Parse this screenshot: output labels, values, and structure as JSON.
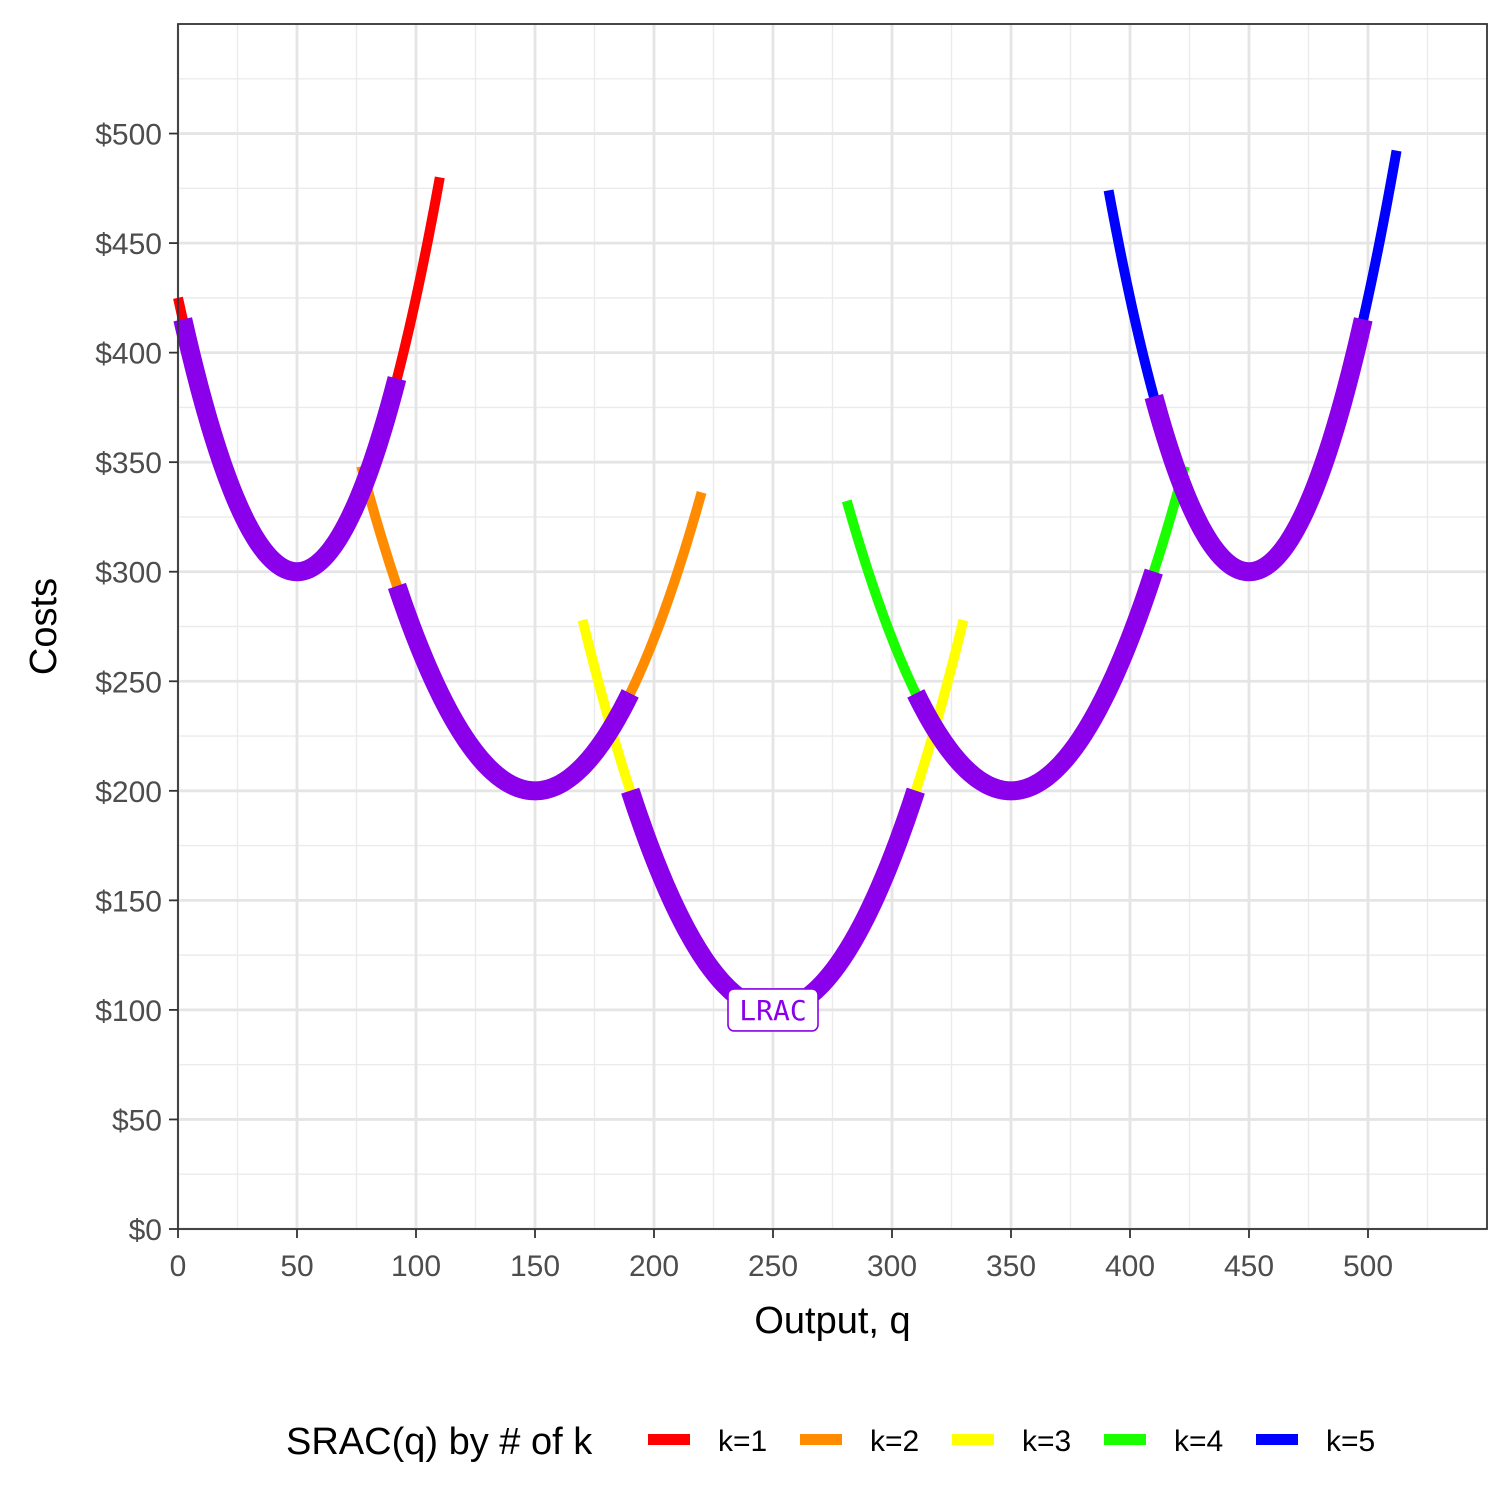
{
  "chart_data": {
    "type": "line",
    "xlabel": "Output, q",
    "ylabel": "Costs",
    "xlim": [
      0,
      550
    ],
    "ylim": [
      0,
      550
    ],
    "x_ticks": [
      0,
      50,
      100,
      150,
      200,
      250,
      300,
      350,
      400,
      450,
      500
    ],
    "x_tick_labels": [
      "0",
      "50",
      "100",
      "150",
      "200",
      "250",
      "300",
      "350",
      "400",
      "450",
      "500"
    ],
    "y_ticks": [
      0,
      50,
      100,
      150,
      200,
      250,
      300,
      350,
      400,
      450,
      500
    ],
    "y_tick_labels": [
      "$0",
      "$50",
      "$100",
      "$150",
      "$200",
      "$250",
      "$300",
      "$350",
      "$400",
      "$450",
      "$500"
    ],
    "grid": true,
    "legend": {
      "title": "SRAC(q) by # of k",
      "position": "bottom",
      "entries": [
        {
          "label": "k=1",
          "color": "#ff0000"
        },
        {
          "label": "k=2",
          "color": "#ff8c00"
        },
        {
          "label": "k=3",
          "color": "#ffff00"
        },
        {
          "label": "k=4",
          "color": "#1aff00"
        },
        {
          "label": "k=5",
          "color": "#0000ff"
        }
      ]
    },
    "series": [
      {
        "name": "k=1",
        "color": "#ff0000",
        "shape": "parabola",
        "vertex": [
          50,
          300
        ],
        "a": 0.05,
        "x_range": [
          0,
          110
        ]
      },
      {
        "name": "k=2",
        "color": "#ff8c00",
        "shape": "parabola",
        "vertex": [
          150,
          200
        ],
        "a": 0.0278,
        "x_range": [
          77,
          220
        ]
      },
      {
        "name": "k=3",
        "color": "#ffff00",
        "shape": "parabola",
        "vertex": [
          250,
          100
        ],
        "a": 0.0278,
        "x_range": [
          170,
          330
        ]
      },
      {
        "name": "k=4",
        "color": "#1aff00",
        "shape": "parabola",
        "vertex": [
          350,
          200
        ],
        "a": 0.0278,
        "x_range": [
          281,
          423
        ]
      },
      {
        "name": "k=5",
        "color": "#0000ff",
        "shape": "parabola",
        "vertex": [
          450,
          300
        ],
        "a": 0.05,
        "x_range": [
          391,
          512
        ]
      }
    ],
    "lrac": {
      "name": "LRAC",
      "color": "#8a00ea",
      "segments": [
        {
          "vertex": [
            50,
            300
          ],
          "a": 0.05,
          "x_range": [
            2,
            92
          ]
        },
        {
          "vertex": [
            150,
            200
          ],
          "a": 0.0278,
          "x_range": [
            92,
            190
          ]
        },
        {
          "vertex": [
            250,
            100
          ],
          "a": 0.0278,
          "x_range": [
            190,
            310
          ]
        },
        {
          "vertex": [
            350,
            200
          ],
          "a": 0.0278,
          "x_range": [
            310,
            410
          ]
        },
        {
          "vertex": [
            450,
            300
          ],
          "a": 0.05,
          "x_range": [
            410,
            498
          ]
        }
      ]
    },
    "annotations": [
      {
        "text": "LRAC",
        "x": 250,
        "y": 100,
        "color": "#8a00ea"
      }
    ]
  }
}
